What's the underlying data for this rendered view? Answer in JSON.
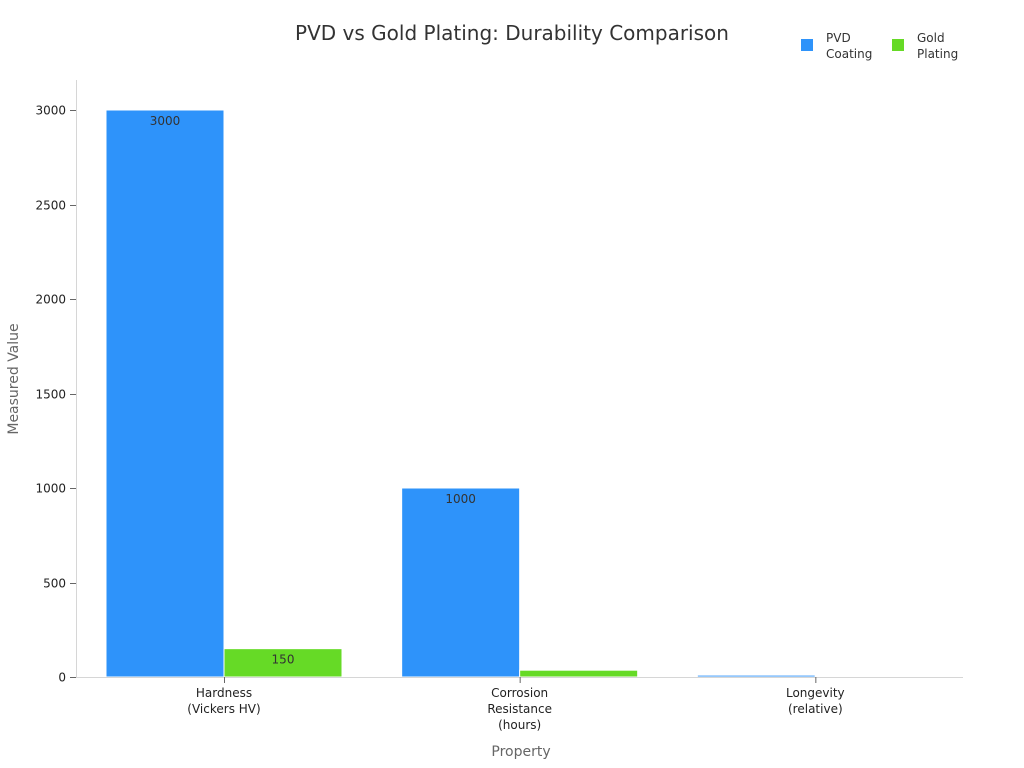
{
  "chart_data": {
    "type": "bar",
    "title": "PVD vs Gold Plating: Durability Comparison",
    "xlabel": "Property",
    "ylabel": "Measured Value",
    "categories": [
      [
        "Hardness",
        "(Vickers HV)"
      ],
      [
        "Corrosion",
        "Resistance",
        "(hours)"
      ],
      [
        "Longevity",
        "(relative)"
      ]
    ],
    "series": [
      {
        "name": [
          "PVD",
          "Coating"
        ],
        "color": "#2e93fa",
        "values": [
          3000,
          1000,
          10
        ],
        "labels": [
          "3000",
          "1000",
          ""
        ]
      },
      {
        "name": [
          "Gold",
          "Plating"
        ],
        "color": "#66da26",
        "values": [
          150,
          36,
          2
        ],
        "labels": [
          "150",
          "",
          ""
        ]
      }
    ],
    "ylim": [
      0,
      3150
    ],
    "yticks": [
      0,
      500,
      1000,
      1500,
      2000,
      2500,
      3000
    ],
    "grid": false,
    "legend_position": "top-right"
  }
}
